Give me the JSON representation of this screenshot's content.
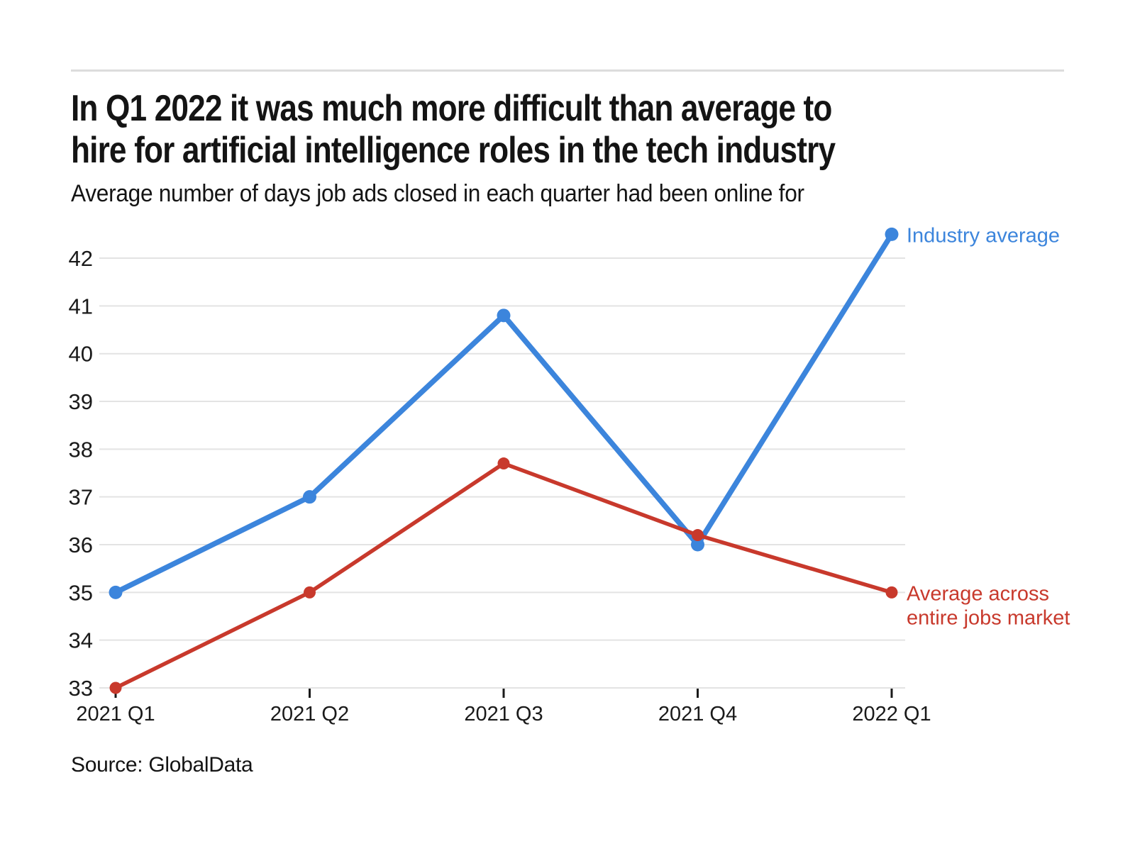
{
  "header": {
    "title_line1": "In Q1 2022 it was much more difficult than average to",
    "title_line2": "hire for artificial intelligence roles in the tech industry",
    "subtitle": "Average number of days job ads closed in each quarter had been online for"
  },
  "footer": {
    "source": "Source: GlobalData"
  },
  "colors": {
    "industry_blue": "#3c85dc",
    "market_red": "#c8392c",
    "gridline": "#e3e3e3",
    "tick": "#1a1a1a",
    "axis_text": "#1a1a1a"
  },
  "chart_data": {
    "type": "line",
    "title": "In Q1 2022 it was much more difficult than average to hire for artificial intelligence roles in the tech industry",
    "subtitle": "Average number of days job ads closed in each quarter had been online for",
    "categories": [
      "2021 Q1",
      "2021 Q2",
      "2021 Q3",
      "2021 Q4",
      "2022 Q1"
    ],
    "series": [
      {
        "name": "Industry average",
        "label_lines": [
          "Industry average"
        ],
        "color": "#3c85dc",
        "values": [
          35,
          37,
          40.8,
          36,
          42.5
        ]
      },
      {
        "name": "Average across entire jobs market",
        "label_lines": [
          "Average across",
          "entire jobs market"
        ],
        "color": "#c8392c",
        "values": [
          33,
          35,
          37.7,
          36.2,
          35
        ]
      }
    ],
    "xlabel": "",
    "ylabel": "",
    "ylim": [
      33,
      42
    ],
    "yticks": [
      33,
      34,
      35,
      36,
      37,
      38,
      39,
      40,
      41,
      42
    ],
    "grid": true,
    "legend_position": "line-end-labels",
    "source": "Source: GlobalData"
  }
}
